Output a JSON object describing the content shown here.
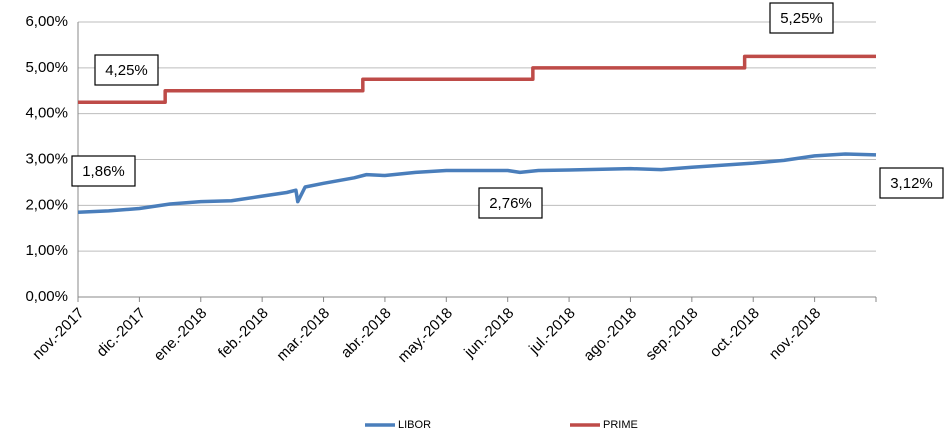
{
  "chart_data": {
    "type": "line",
    "xlim": [
      0,
      13
    ],
    "xticks": [
      {
        "value": 0,
        "label": "nov.-2017"
      },
      {
        "value": 1,
        "label": "dic.-2017"
      },
      {
        "value": 2,
        "label": "ene.-2018"
      },
      {
        "value": 3,
        "label": "feb.-2018"
      },
      {
        "value": 4,
        "label": "mar.-2018"
      },
      {
        "value": 5,
        "label": "abr.-2018"
      },
      {
        "value": 6,
        "label": "may.-2018"
      },
      {
        "value": 7,
        "label": "jun.-2018"
      },
      {
        "value": 8,
        "label": "jul.-2018"
      },
      {
        "value": 9,
        "label": "ago.-2018"
      },
      {
        "value": 10,
        "label": "sep.-2018"
      },
      {
        "value": 11,
        "label": "oct.-2018"
      },
      {
        "value": 12,
        "label": "nov.-2018"
      }
    ],
    "ylim": [
      0,
      6
    ],
    "yticks": [
      {
        "value": 0,
        "label": "0,00%"
      },
      {
        "value": 1,
        "label": "1,00%"
      },
      {
        "value": 2,
        "label": "2,00%"
      },
      {
        "value": 3,
        "label": "3,00%"
      },
      {
        "value": 4,
        "label": "4,00%"
      },
      {
        "value": 5,
        "label": "5,00%"
      },
      {
        "value": 6,
        "label": "6,00%"
      }
    ],
    "grid": true,
    "legend": "bottom",
    "series": [
      {
        "name": "LIBOR",
        "color": "#4a7ebb",
        "x": [
          0,
          0.5,
          1,
          1.5,
          2,
          2.5,
          3,
          3.4,
          3.55,
          3.58,
          3.7,
          4,
          4.5,
          4.7,
          5,
          5.5,
          6,
          7,
          7.2,
          7.5,
          8,
          9,
          9.5,
          10,
          11,
          11.5,
          12,
          12.5,
          13
        ],
        "values": [
          1.85,
          1.88,
          1.93,
          2.03,
          2.08,
          2.1,
          2.2,
          2.28,
          2.33,
          2.08,
          2.4,
          2.48,
          2.6,
          2.67,
          2.65,
          2.72,
          2.76,
          2.76,
          2.72,
          2.76,
          2.77,
          2.8,
          2.78,
          2.83,
          2.92,
          2.98,
          3.08,
          3.12,
          3.1
        ]
      },
      {
        "name": "PRIME",
        "color": "#be4b48",
        "x": [
          0,
          1.42,
          1.42,
          4.64,
          4.64,
          7.41,
          7.41,
          10.86,
          10.86,
          13
        ],
        "values": [
          4.25,
          4.25,
          4.5,
          4.5,
          4.75,
          4.75,
          5,
          5,
          5.25,
          5.25
        ]
      }
    ],
    "annotations": [
      "5,25%",
      "4,25%",
      "1,86%",
      "2,76%",
      "3,12%"
    ]
  }
}
